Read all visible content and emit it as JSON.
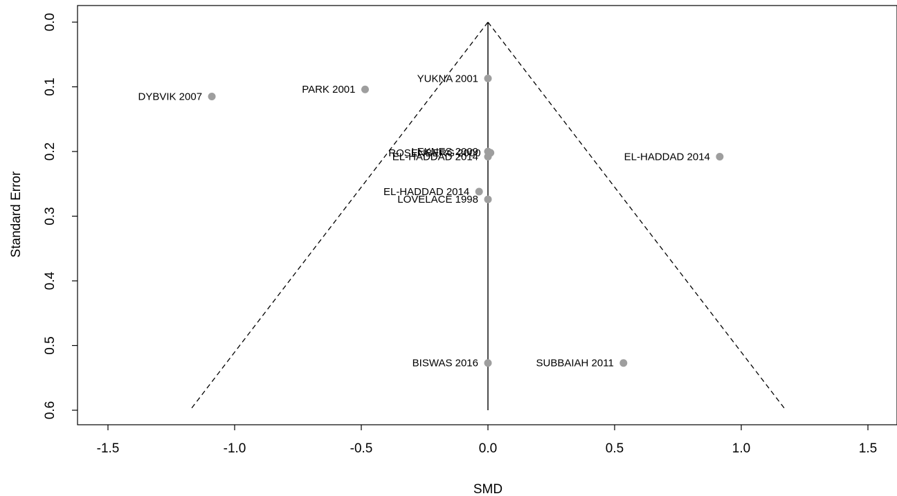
{
  "chart_data": {
    "type": "scatter",
    "subtype": "funnel",
    "title": "",
    "xlabel": "SMD",
    "ylabel": "Standard Error",
    "xlim": [
      -1.6,
      1.6
    ],
    "ylim": [
      0.0,
      0.6
    ],
    "y_reversed": true,
    "x_ticks": [
      -1.5,
      -1.0,
      -0.5,
      0.0,
      0.5,
      1.0,
      1.5
    ],
    "x_tick_labels": [
      "-1.5",
      "-1.0",
      "-0.5",
      "0.0",
      "0.5",
      "1.0",
      "1.5"
    ],
    "y_ticks": [
      0.0,
      0.1,
      0.2,
      0.3,
      0.4,
      0.5,
      0.6
    ],
    "y_tick_labels": [
      "0.0",
      "0.1",
      "0.2",
      "0.3",
      "0.4",
      "0.5",
      "0.6"
    ],
    "grid": false,
    "point_color": "#9e9e9e",
    "summary_estimate": 0.0,
    "funnel_ci_multiplier": 1.96,
    "points": [
      {
        "label": "DYBVIK 2007",
        "x": -1.09,
        "y": 0.115
      },
      {
        "label": "PARK 2001",
        "x": -0.485,
        "y": 0.104
      },
      {
        "label": "YUKNA 2001",
        "x": 0.0,
        "y": 0.087
      },
      {
        "label": "LEKNES 2009",
        "x": 0.0,
        "y": 0.2
      },
      {
        "label": "ROSENBERG 2000",
        "x": 0.01,
        "y": 0.202
      },
      {
        "label": "EL-HADDAD 2014",
        "x": 0.0,
        "y": 0.208
      },
      {
        "label": "EL-HADDAD 2014",
        "x": 0.915,
        "y": 0.208
      },
      {
        "label": "EL-HADDAD 2014",
        "x": -0.035,
        "y": 0.262
      },
      {
        "label": "LOVELACE 1998",
        "x": 0.0,
        "y": 0.274
      },
      {
        "label": "BISWAS 2016",
        "x": 0.0,
        "y": 0.527
      },
      {
        "label": "SUBBAIAH 2011",
        "x": 0.535,
        "y": 0.527
      }
    ]
  }
}
